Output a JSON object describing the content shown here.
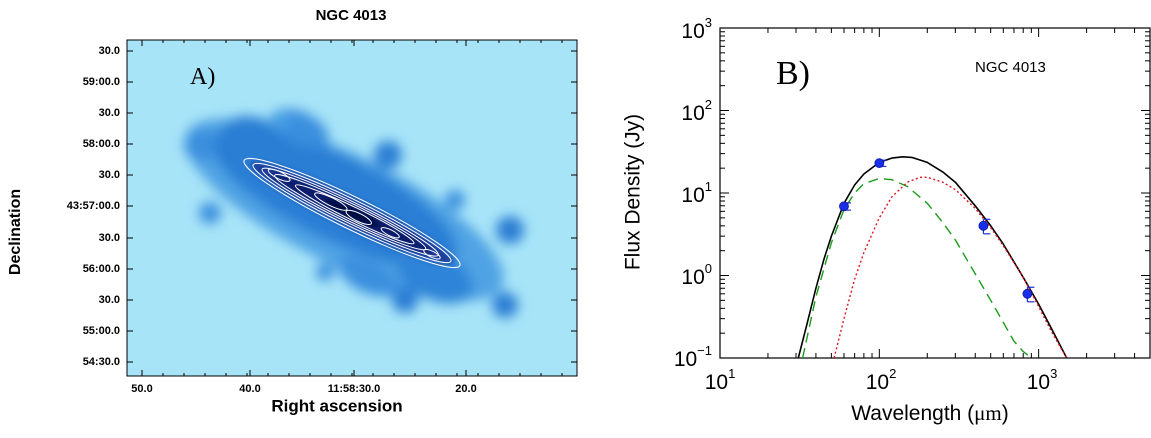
{
  "panel_a": {
    "title": "NGC 4013",
    "panel_label": "A)",
    "xlabel": "Right ascension",
    "ylabel": "Declination",
    "yticks": [
      "30.0",
      "59:00.0",
      "30.0",
      "58:00.0",
      "30.0",
      "43:57:00.0",
      "30.0",
      "56:00.0",
      "30.0",
      "55:00.0",
      "54:30.0"
    ],
    "xticks": [
      "50.0",
      "40.0",
      "11:58:30.0",
      "20.0"
    ],
    "colors": {
      "background": "#a8e4f8",
      "emission": "#2f7fd6",
      "core": "#0a1a5a",
      "contour": "#ffffff"
    }
  },
  "panel_b": {
    "panel_label": "B)",
    "annotation": "NGC 4013",
    "ylabel": "Flux Density (Jy)",
    "xlabel_text": "Wavelength (",
    "xlabel_unit": "μm",
    "xlabel_close": ")",
    "xtick_base": "10",
    "xtick_exps": [
      "1",
      "2",
      "3"
    ],
    "ytick_base": "10",
    "ytick_exps": [
      "−1",
      "0",
      "1",
      "2",
      "3"
    ]
  },
  "chart_data": [
    {
      "type": "heatmap",
      "title": "NGC 4013",
      "xlabel": "Right ascension",
      "ylabel": "Declination",
      "x_ticks": [
        "50.0",
        "40.0",
        "11:58:30.0",
        "20.0"
      ],
      "y_ticks": [
        "30.0",
        "59:00.0",
        "30.0",
        "58:00.0",
        "30.0",
        "43:57:00.0",
        "30.0",
        "56:00.0",
        "30.0",
        "55:00.0",
        "54:30.0"
      ],
      "grid": false,
      "contours": true
    },
    {
      "type": "scatter",
      "title": "",
      "annotation": "NGC 4013",
      "xlabel": "Wavelength (μm)",
      "ylabel": "Flux Density (Jy)",
      "xscale": "log",
      "yscale": "log",
      "xlim": [
        10,
        5000
      ],
      "ylim": [
        0.1,
        1000
      ],
      "points": [
        {
          "x": 60,
          "y": 6.9,
          "err": 0.7
        },
        {
          "x": 100,
          "y": 23,
          "err": 2.0
        },
        {
          "x": 450,
          "y": 4.0,
          "err": 0.8
        },
        {
          "x": 850,
          "y": 0.6,
          "err": 0.12
        }
      ],
      "series": [
        {
          "style": "solid",
          "color": "#000000",
          "x": [
            31,
            35,
            40,
            45,
            50,
            60,
            70,
            80,
            100,
            120,
            140,
            160,
            200,
            250,
            300,
            400,
            500,
            600,
            800,
            1000,
            1200,
            1500
          ],
          "y": [
            0.1,
            0.25,
            0.7,
            1.6,
            3.0,
            7.5,
            12.5,
            17,
            23.5,
            26.5,
            27.5,
            27,
            23.5,
            18,
            13.5,
            7.0,
            4.0,
            2.4,
            0.95,
            0.45,
            0.23,
            0.1
          ]
        },
        {
          "style": "dashed",
          "color": "#1a9c1a",
          "x": [
            33,
            40,
            50,
            60,
            70,
            80,
            100,
            120,
            150,
            200,
            250,
            300,
            400,
            500,
            600,
            700,
            800,
            900
          ],
          "y": [
            0.1,
            0.55,
            2.5,
            6.3,
            10,
            13,
            15,
            14.5,
            12,
            7.5,
            4.4,
            2.7,
            1.05,
            0.5,
            0.27,
            0.16,
            0.12,
            0.1
          ]
        },
        {
          "style": "dotted",
          "color": "#e0141e",
          "x": [
            52,
            60,
            70,
            80,
            100,
            120,
            150,
            180,
            200,
            250,
            300,
            400,
            500,
            600,
            800,
            1000,
            1200,
            1500
          ],
          "y": [
            0.1,
            0.3,
            0.9,
            1.9,
            5.0,
            9.0,
            13.5,
            15.5,
            15.5,
            13.5,
            11,
            6.5,
            3.8,
            2.3,
            0.95,
            0.42,
            0.21,
            0.1
          ]
        }
      ]
    }
  ]
}
